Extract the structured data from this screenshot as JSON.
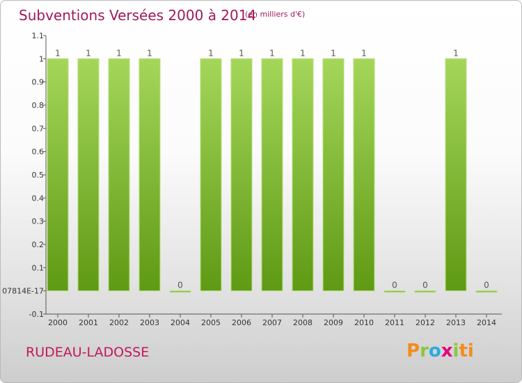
{
  "header": {
    "title": "Subventions Versées 2000 à 2014",
    "unit": "(en milliers d'€)"
  },
  "footer": {
    "commune": "RUDEAU-LADOSSE",
    "logo": [
      "P",
      "r",
      "o",
      "x",
      "i",
      "t",
      "i"
    ]
  },
  "colors": {
    "title": "#a0185a",
    "commune": "#c2185b",
    "bar_light": "#9ed24f",
    "bar_dark": "#5f9a14",
    "bar_edge": "#b6e07a"
  },
  "chart_data": {
    "type": "bar",
    "categories": [
      "2000",
      "2001",
      "2002",
      "2003",
      "2004",
      "2005",
      "2006",
      "2007",
      "2008",
      "2009",
      "2010",
      "2011",
      "2012",
      "2013",
      "2014"
    ],
    "values": [
      1,
      1,
      1,
      1,
      0,
      1,
      1,
      1,
      1,
      1,
      1,
      0,
      0,
      1,
      0
    ],
    "data_labels": [
      "1",
      "1",
      "1",
      "1",
      "0",
      "1",
      "1",
      "1",
      "1",
      "1",
      "1",
      "0",
      "0",
      "1",
      "0"
    ],
    "ylim": [
      -0.1,
      1.1
    ],
    "y_ticks": [
      -0.1,
      0,
      0.1,
      0.2,
      0.3,
      0.4,
      0.5,
      0.6,
      0.7,
      0.8,
      0.9,
      1,
      1.1
    ],
    "y_tick_labels": [
      "-0.1",
      "07814E-17",
      "0.1",
      "0.2",
      "0.3",
      "0.4",
      "0.5",
      "0.6",
      "0.7",
      "0.8",
      "0.9",
      "1",
      "1.1"
    ],
    "xlabel": "",
    "ylabel": "",
    "grid": false,
    "legend": "none"
  }
}
